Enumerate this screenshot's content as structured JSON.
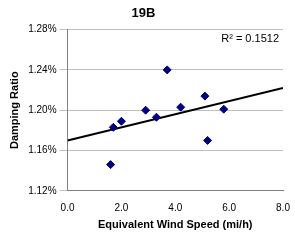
{
  "chart_data": {
    "type": "scatter",
    "title": "19B",
    "x_label": "Equivalent Wind Speed (mi/h)",
    "y_label": "Damping Ratio",
    "annotation": "R² = 0.1512",
    "series": [
      {
        "type": "scatter",
        "color": "#000080",
        "marker": "diamond",
        "x": [
          1.6,
          1.7,
          2.0,
          2.9,
          3.3,
          3.7,
          4.2,
          5.1,
          5.2,
          5.8
        ],
        "values": [
          1.146,
          1.183,
          1.189,
          1.2,
          1.193,
          1.24,
          1.203,
          1.214,
          1.17,
          1.201
        ]
      },
      {
        "type": "line",
        "color": "#000000",
        "line_style": "solid",
        "x": [
          0,
          8
        ],
        "values": [
          1.17,
          1.222
        ]
      }
    ],
    "xlim": [
      0,
      8
    ],
    "xticks": [
      {
        "value": 0,
        "label": "0.0"
      },
      {
        "value": 2,
        "label": "2.0"
      },
      {
        "value": 4,
        "label": "4.0"
      },
      {
        "value": 6,
        "label": "6.0"
      },
      {
        "value": 8,
        "label": "8.0"
      }
    ],
    "ylim": [
      1.12,
      1.28
    ],
    "yticks": [
      {
        "value": 1.12,
        "label": "1.12%"
      },
      {
        "value": 1.16,
        "label": "1.16%"
      },
      {
        "value": 1.2,
        "label": "1.20%"
      },
      {
        "value": 1.24,
        "label": "1.24%"
      },
      {
        "value": 1.28,
        "label": "1.28%"
      }
    ],
    "grid": "y"
  }
}
